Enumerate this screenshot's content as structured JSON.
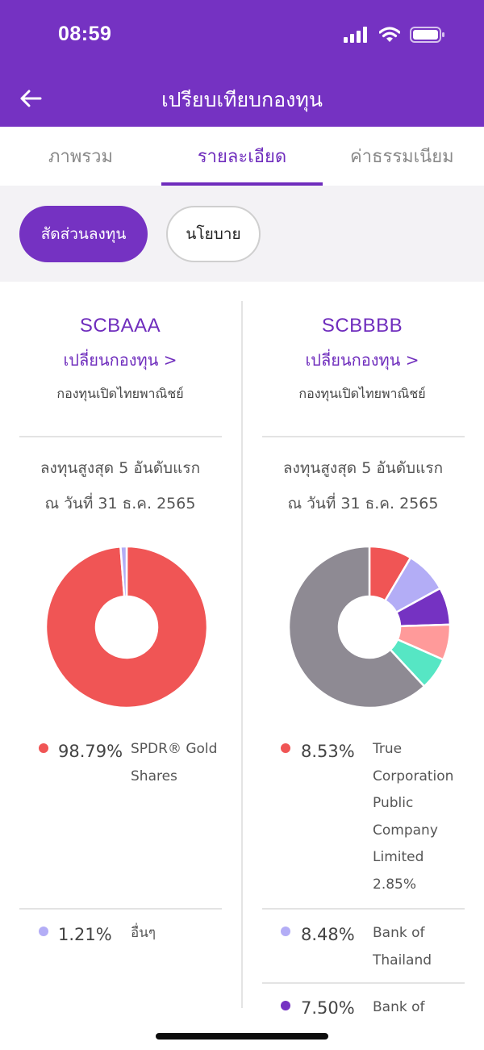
{
  "status": {
    "time": "08:59"
  },
  "header": {
    "title": "เปรียบเทียบกองทุน",
    "back_icon": "arrow-left-icon"
  },
  "tabs": [
    {
      "label": "ภาพรวม",
      "active": false
    },
    {
      "label": "รายละเอียด",
      "active": true
    },
    {
      "label": "ค่าธรรมเนียม",
      "active": false
    }
  ],
  "chips": [
    {
      "label": "สัดส่วนลงทุน",
      "active": true
    },
    {
      "label": "นโยบาย",
      "active": false
    }
  ],
  "funds": [
    {
      "name": "SCBAAA",
      "switch_label": "เปลี่ยนกองทุน >",
      "company": "กองทุนเปิดไทยพาณิชย์",
      "top5_title": "ลงทุนสูงสุด 5 อันดับแรก",
      "as_of": "ณ วันที่ 31 ธ.ค. 2565",
      "holdings": [
        {
          "percent": "98.79%",
          "name": "SPDR® Gold Shares",
          "value": 98.79,
          "color": "#F05555"
        },
        {
          "percent": "1.21%",
          "name": "อื่นๆ",
          "value": 1.21,
          "color": "#B3ADF6"
        }
      ]
    },
    {
      "name": "SCBBBB",
      "switch_label": "เปลี่ยนกองทุน >",
      "company": "กองทุนเปิดไทยพาณิชย์",
      "top5_title": "ลงทุนสูงสุด 5 อันดับแรก",
      "as_of": "ณ วันที่ 31 ธ.ค. 2565",
      "holdings": [
        {
          "percent": "8.53%",
          "name": "True Corporation Public Company Limited 2.85%",
          "value": 8.53,
          "color": "#F05555"
        },
        {
          "percent": "8.48%",
          "name": "Bank of Thailand",
          "value": 8.48,
          "color": "#B3ADF6"
        },
        {
          "percent": "7.50%",
          "name": "Bank of",
          "value": 7.5,
          "color": "#7532C2"
        },
        {
          "value": 7.1,
          "color": "#FF9A9A"
        },
        {
          "value": 6.5,
          "color": "#56E6C4"
        },
        {
          "value": 61.89,
          "color": "#8E8A93"
        }
      ]
    }
  ],
  "chart_data": [
    {
      "type": "pie",
      "categories": [
        "SPDR® Gold Shares",
        "อื่นๆ"
      ],
      "values": [
        98.79,
        1.21
      ]
    },
    {
      "type": "pie",
      "categories": [
        "True Corporation Public Company Limited 2.85%",
        "Bank of Thailand",
        "Bank of",
        "",
        "",
        ""
      ],
      "values": [
        8.53,
        8.48,
        7.5,
        7.1,
        6.5,
        61.89
      ]
    }
  ]
}
